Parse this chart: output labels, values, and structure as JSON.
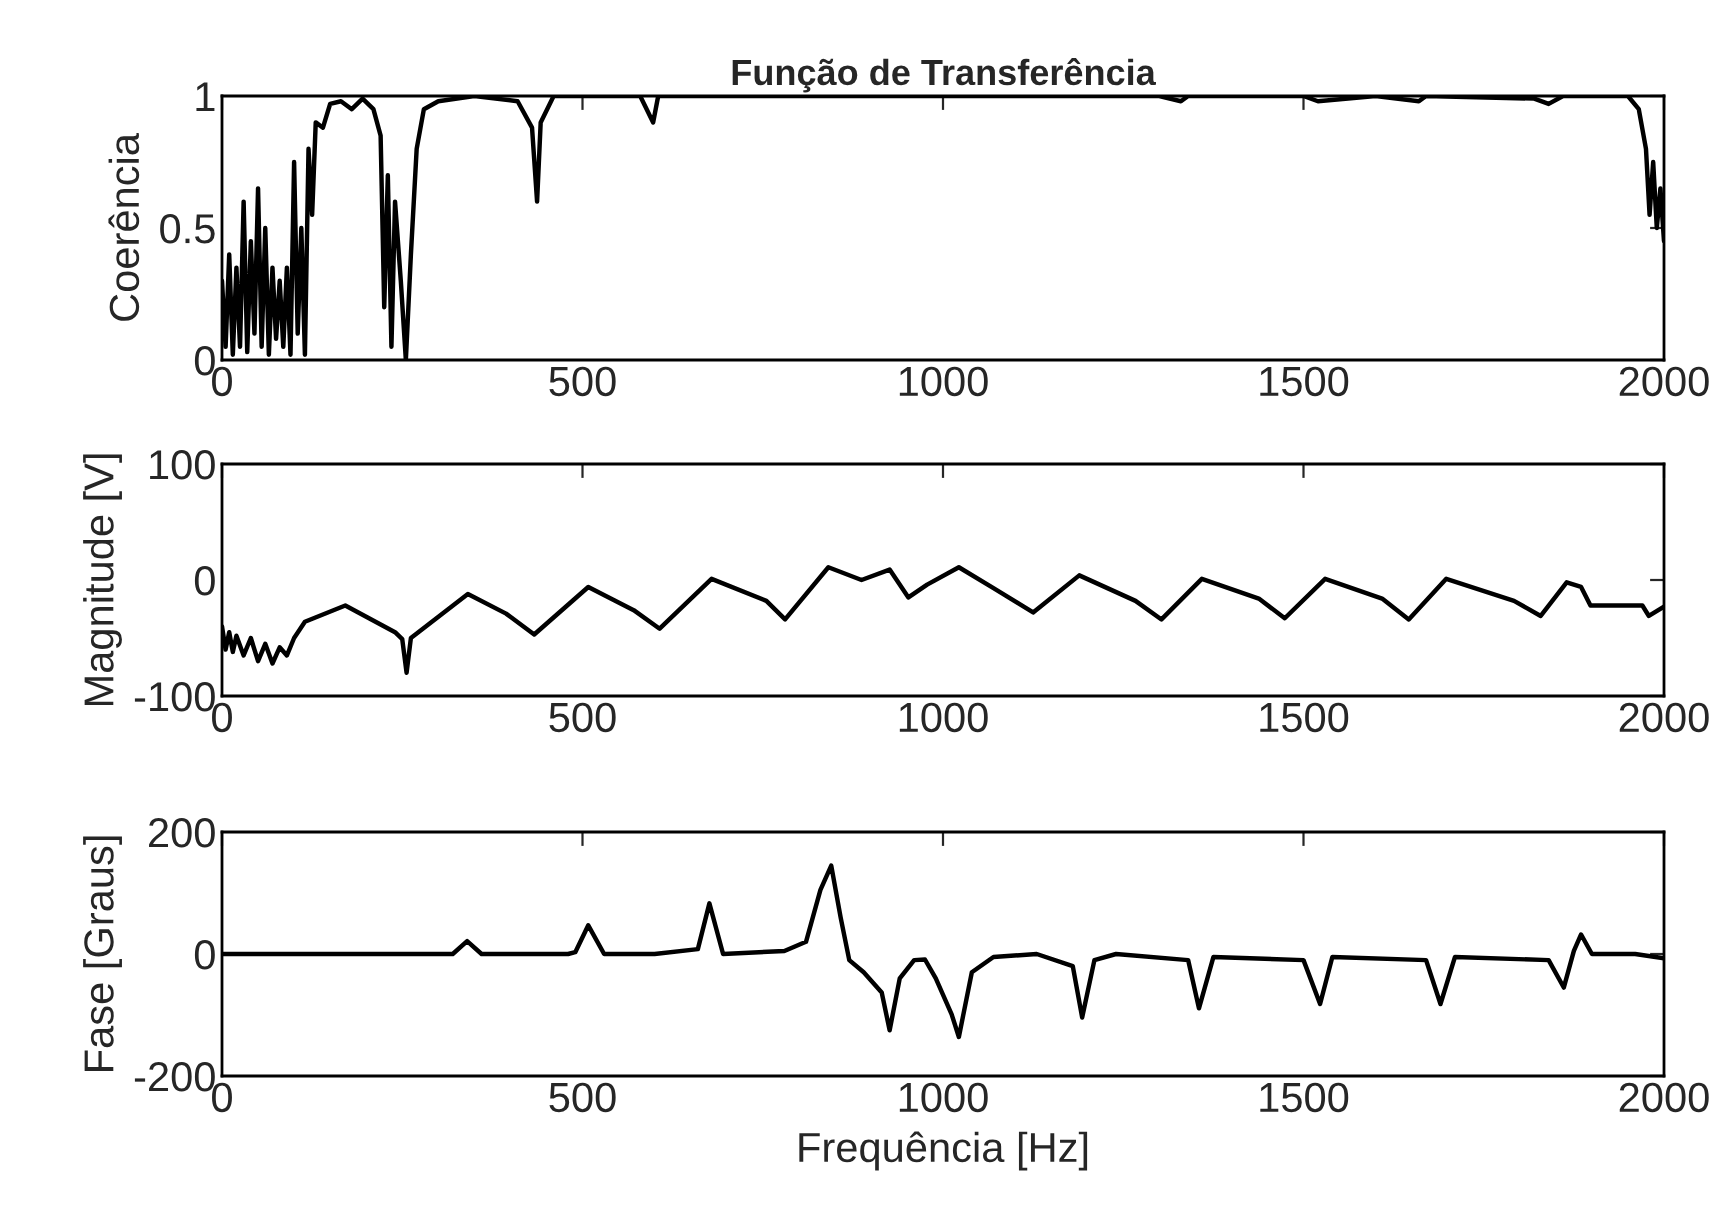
{
  "chart_data": [
    {
      "type": "line",
      "title": "Função de Transferência",
      "ylabel": "Coerência",
      "xlim": [
        0,
        2000
      ],
      "xticks": [
        0,
        500,
        1000,
        1500,
        2000
      ],
      "ylim": [
        0,
        1
      ],
      "yticks": [
        0,
        0.5,
        1
      ],
      "grid": false,
      "legend": false,
      "marker": "none",
      "line_style": "solid",
      "series": [
        {
          "color": "#000000",
          "x": [
            0,
            5,
            10,
            15,
            20,
            25,
            30,
            35,
            40,
            45,
            50,
            55,
            60,
            65,
            70,
            75,
            80,
            85,
            90,
            95,
            100,
            105,
            110,
            115,
            120,
            125,
            130,
            140,
            150,
            165,
            180,
            195,
            210,
            220,
            225,
            230,
            235,
            240,
            248,
            255,
            262,
            270,
            280,
            300,
            350,
            410,
            430,
            437,
            442,
            460,
            580,
            598,
            605,
            700,
            1000,
            1300,
            1330,
            1340,
            1500,
            1520,
            1600,
            1660,
            1670,
            1820,
            1840,
            1860,
            1950,
            1965,
            1975,
            1980,
            1985,
            1990,
            1995,
            2000
          ],
          "values": [
            0.3,
            0.05,
            0.4,
            0.02,
            0.35,
            0.05,
            0.6,
            0.03,
            0.45,
            0.1,
            0.65,
            0.05,
            0.5,
            0.02,
            0.35,
            0.08,
            0.3,
            0.05,
            0.35,
            0.02,
            0.75,
            0.1,
            0.5,
            0.02,
            0.8,
            0.55,
            0.9,
            0.88,
            0.97,
            0.98,
            0.95,
            0.99,
            0.95,
            0.85,
            0.2,
            0.7,
            0.05,
            0.6,
            0.3,
            0.0,
            0.4,
            0.8,
            0.95,
            0.98,
            1.0,
            0.98,
            0.88,
            0.6,
            0.9,
            1.0,
            1.0,
            0.9,
            1.0,
            1.0,
            1.0,
            1.0,
            0.98,
            1.0,
            1.0,
            0.98,
            1.0,
            0.98,
            1.0,
            0.99,
            0.97,
            1.0,
            1.0,
            0.95,
            0.8,
            0.55,
            0.75,
            0.5,
            0.65,
            0.45
          ]
        }
      ]
    },
    {
      "type": "line",
      "ylabel": "Magnitude [V]",
      "xlim": [
        0,
        2000
      ],
      "xticks": [
        0,
        500,
        1000,
        1500,
        2000
      ],
      "ylim": [
        -100,
        100
      ],
      "yticks": [
        {
          "value": -100,
          "label": "-100"
        },
        0,
        100
      ],
      "grid": false,
      "legend": false,
      "marker": "none",
      "line_style": "solid",
      "series": [
        {
          "color": "#000000",
          "x": [
            0,
            5,
            10,
            15,
            20,
            30,
            40,
            50,
            60,
            70,
            80,
            90,
            100,
            115,
            171,
            240,
            250,
            256,
            262,
            341,
            394,
            433,
            508,
            571,
            607,
            679,
            755,
            781,
            841,
            887,
            926,
            952,
            978,
            1022,
            1070,
            1125,
            1189,
            1267,
            1303,
            1359,
            1438,
            1474,
            1530,
            1609,
            1646,
            1698,
            1792,
            1829,
            1865,
            1885,
            1898,
            1970,
            1979,
            2000
          ],
          "values": [
            -40,
            -60,
            -45,
            -62,
            -48,
            -65,
            -50,
            -70,
            -55,
            -72,
            -58,
            -65,
            -50,
            -36,
            -22,
            -45,
            -51,
            -80,
            -50,
            -12,
            -29,
            -47,
            -6,
            -26,
            -42,
            1,
            -18,
            -34,
            11,
            0,
            9,
            -15,
            -4,
            11,
            -7,
            -28,
            4,
            -18,
            -34,
            1,
            -16,
            -33,
            1,
            -16,
            -34,
            1,
            -18,
            -31,
            -2,
            -6,
            -22,
            -22,
            -31,
            -23
          ]
        }
      ]
    },
    {
      "type": "line",
      "ylabel": "Fase [Graus]",
      "xlabel": "Frequência [Hz]",
      "xlim": [
        0,
        2000
      ],
      "xticks": [
        0,
        500,
        1000,
        1500,
        2000
      ],
      "ylim": [
        -200,
        200
      ],
      "yticks": [
        {
          "value": -200,
          "label": "-200"
        },
        0,
        200
      ],
      "grid": false,
      "legend": false,
      "marker": "none",
      "line_style": "solid",
      "series": [
        {
          "color": "#000000",
          "x": [
            0,
            320,
            340,
            360,
            480,
            490,
            508,
            530,
            600,
            660,
            676,
            695,
            780,
            810,
            830,
            845,
            858,
            870,
            890,
            915,
            926,
            940,
            960,
            975,
            990,
            1012,
            1022,
            1040,
            1070,
            1130,
            1180,
            1193,
            1210,
            1240,
            1340,
            1355,
            1375,
            1500,
            1523,
            1540,
            1670,
            1690,
            1710,
            1840,
            1861,
            1875,
            1885,
            1900,
            1960,
            2000
          ],
          "values": [
            0,
            0,
            21,
            0,
            0,
            3,
            47,
            0,
            0,
            8,
            83,
            0,
            5,
            20,
            105,
            145,
            60,
            -10,
            -30,
            -63,
            -125,
            -40,
            -10,
            -9,
            -40,
            -99,
            -136,
            -30,
            -5,
            0,
            -20,
            -104,
            -10,
            0,
            -10,
            -89,
            -5,
            -10,
            -82,
            -5,
            -10,
            -82,
            -5,
            -10,
            -55,
            5,
            32,
            0,
            0,
            -7
          ]
        }
      ]
    }
  ]
}
